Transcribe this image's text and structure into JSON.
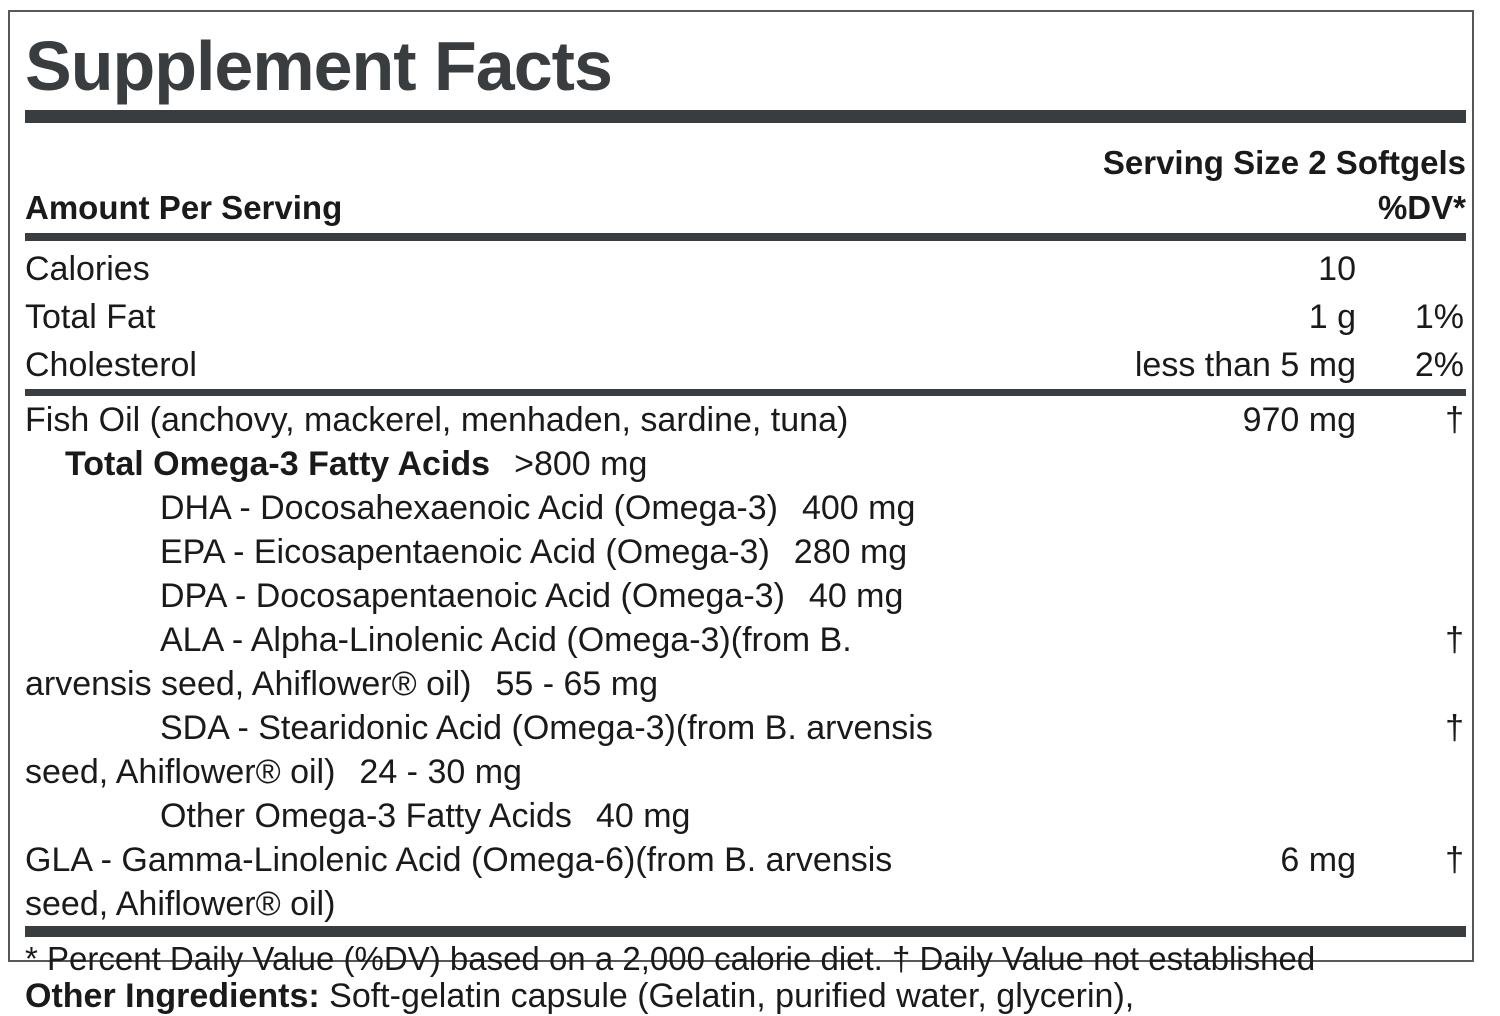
{
  "panel": {
    "title": "Supplement Facts",
    "serving_size": "Serving Size 2 Softgels",
    "header": {
      "amount_label": "Amount Per Serving",
      "dv_label": "%DV*"
    },
    "main_rows": [
      {
        "name": "Calories",
        "amount": "10",
        "dv": ""
      },
      {
        "name": "Total Fat",
        "amount": "1 g",
        "dv": "1%"
      },
      {
        "name": "Cholesterol",
        "amount": "less than 5 mg",
        "dv": "2%"
      }
    ],
    "nutrient_rows": [
      {
        "indent": 0,
        "lines": [
          [
            {
              "t": "Fish Oil (anchovy, mackerel, menhaden, sardine, tuna)"
            }
          ]
        ],
        "amount": "970 mg",
        "dv": "†"
      },
      {
        "indent": 1,
        "lines": [
          [
            {
              "t": "Total Omega-3 Fatty Acids",
              "b": 1
            },
            {
              "t": ">800 mg",
              "gap": 1
            }
          ]
        ]
      },
      {
        "indent": 2,
        "lines": [
          [
            {
              "t": "DHA - Docosahexaenoic Acid (Omega-3)"
            },
            {
              "t": "400 mg",
              "gap": 1
            }
          ]
        ]
      },
      {
        "indent": 2,
        "lines": [
          [
            {
              "t": "EPA - Eicosapentaenoic Acid (Omega-3)"
            },
            {
              "t": "280 mg",
              "gap": 1
            }
          ]
        ]
      },
      {
        "indent": 2,
        "lines": [
          [
            {
              "t": "DPA - Docosapentaenoic Acid (Omega-3)"
            },
            {
              "t": "40 mg",
              "gap": 1
            }
          ]
        ]
      },
      {
        "indent": 2,
        "lines": [
          [
            {
              "t": "ALA - Alpha-Linolenic Acid (Omega-3)(from B."
            }
          ],
          [
            {
              "t": "arvensis seed, Ahiflower® oil)"
            },
            {
              "t": "55 - 65 mg",
              "gap": 1
            }
          ]
        ],
        "dv": "†"
      },
      {
        "indent": 2,
        "lines": [
          [
            {
              "t": "SDA - Stearidonic Acid (Omega-3)(from B. arvensis"
            }
          ],
          [
            {
              "t": "seed, Ahiflower® oil)"
            },
            {
              "t": "24 - 30 mg",
              "gap": 1
            }
          ]
        ],
        "dv": "†"
      },
      {
        "indent": 2,
        "lines": [
          [
            {
              "t": "Other Omega-3 Fatty Acids"
            },
            {
              "t": "40 mg",
              "gap": 1
            }
          ]
        ]
      },
      {
        "indent": 0,
        "lines": [
          [
            {
              "t": "GLA - Gamma-Linolenic Acid (Omega-6)(from B. arvensis"
            }
          ],
          [
            {
              "t": "seed, Ahiflower® oil)"
            }
          ]
        ],
        "amount": "6 mg",
        "dv": "†"
      }
    ],
    "footnote": "* Percent Daily Value (%DV) based on a 2,000 calorie diet. † Daily Value not established"
  },
  "other_ingredients": {
    "label": "Other Ingredients:",
    "text": " Soft-gelatin capsule (Gelatin, purified water, glycerin),"
  }
}
